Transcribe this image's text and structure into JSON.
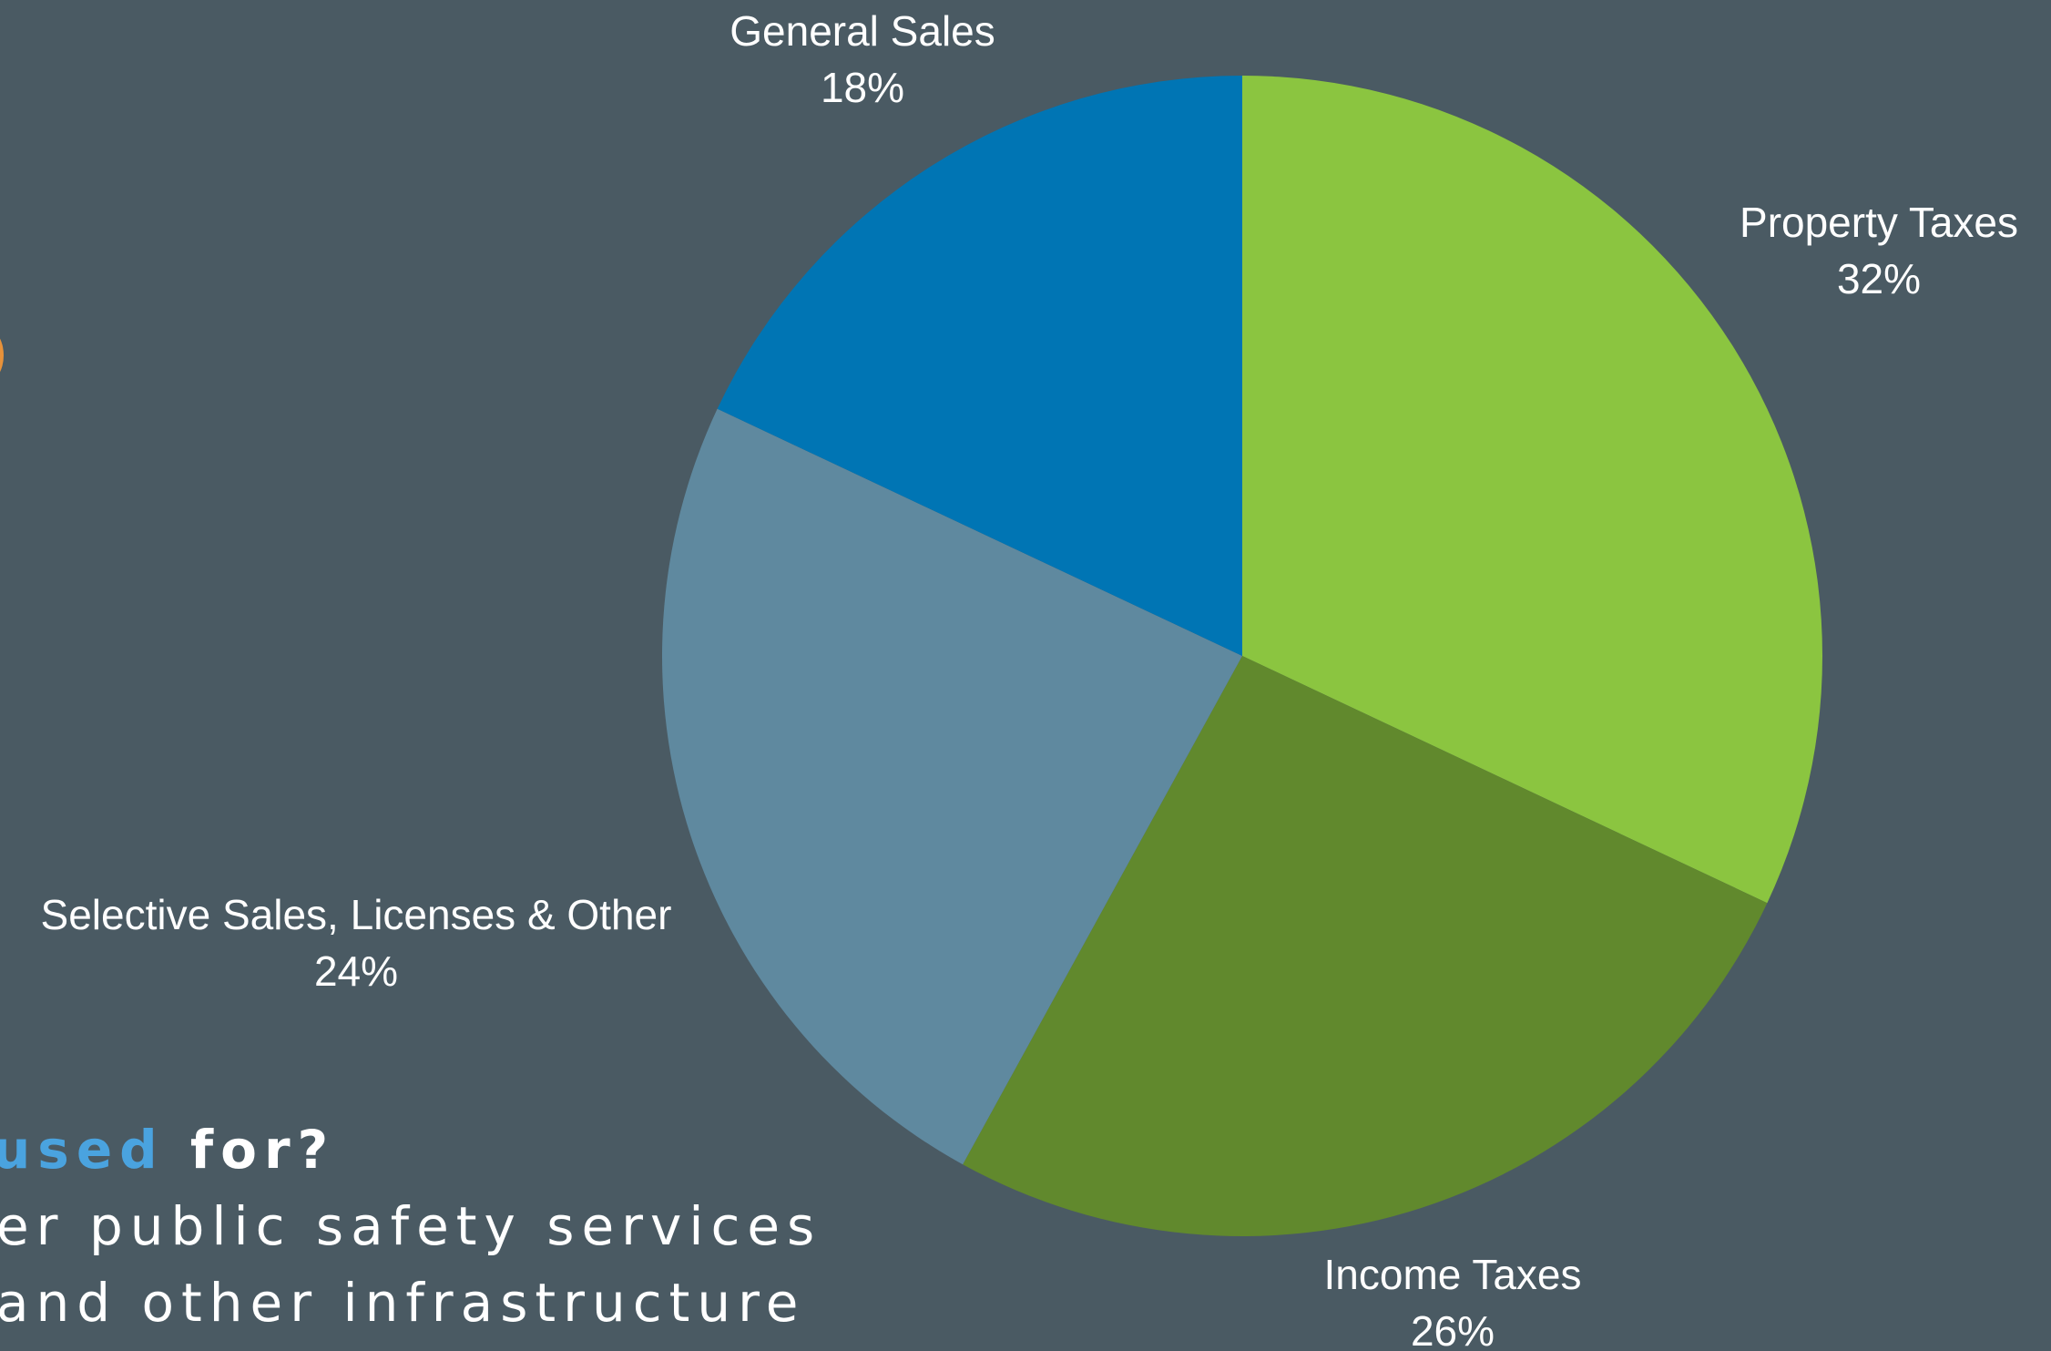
{
  "chart_data": {
    "type": "pie",
    "start_angle_deg": 0,
    "direction": "clockwise",
    "slices": [
      {
        "label": "Property Taxes",
        "value": 32,
        "value_label": "32%",
        "color": "#8bc540"
      },
      {
        "label": "Income Taxes",
        "value": 26,
        "value_label": "26%",
        "color": "#61892d"
      },
      {
        "label": "Selective Sales, Licenses & Other",
        "value": 24,
        "value_label": "24%",
        "color": "#5f899f"
      },
      {
        "label": "General Sales",
        "value": 18,
        "value_label": "18%",
        "color": "#0075b4"
      }
    ]
  },
  "background_text": {
    "line1_accent": "used",
    "line1_rest": " for?",
    "line2": "er public safety services",
    "line3": " and other infrastructure"
  },
  "colors": {
    "background": "#4a5a63",
    "accent_text": "#4aa3df",
    "orange_mark": "#e8923a"
  }
}
